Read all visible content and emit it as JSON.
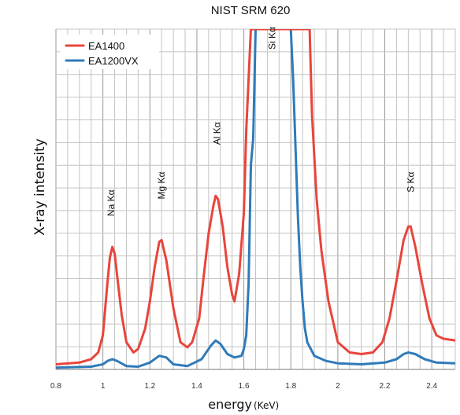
{
  "chart_data": {
    "type": "line",
    "title": "NIST SRM 620",
    "xlabel": "energy",
    "xunit": "(KeV)",
    "ylabel": "X-ray intensity",
    "xlim": [
      0.8,
      2.5
    ],
    "ylim": [
      0,
      100
    ],
    "x_ticks": [
      "0.8",
      "1",
      "1.2",
      "1.4",
      "1.6",
      "1.8",
      "2",
      "2.2",
      "2.4"
    ],
    "grid": true,
    "legend_position": "top-left",
    "series": [
      {
        "name": "EA1400",
        "color": "#e8453c",
        "points": [
          [
            0.8,
            1.5
          ],
          [
            0.9,
            2.0
          ],
          [
            0.95,
            3.0
          ],
          [
            0.98,
            5.0
          ],
          [
            1.0,
            10.0
          ],
          [
            1.01,
            18.0
          ],
          [
            1.02,
            26.0
          ],
          [
            1.03,
            33.0
          ],
          [
            1.04,
            36.0
          ],
          [
            1.05,
            34.0
          ],
          [
            1.06,
            28.0
          ],
          [
            1.08,
            16.0
          ],
          [
            1.1,
            8.0
          ],
          [
            1.13,
            5.0
          ],
          [
            1.15,
            6.0
          ],
          [
            1.18,
            12.0
          ],
          [
            1.2,
            20.0
          ],
          [
            1.22,
            30.0
          ],
          [
            1.24,
            37.5
          ],
          [
            1.25,
            38.0
          ],
          [
            1.27,
            32.0
          ],
          [
            1.3,
            18.0
          ],
          [
            1.33,
            8.0
          ],
          [
            1.36,
            6.5
          ],
          [
            1.38,
            8.0
          ],
          [
            1.41,
            15.0
          ],
          [
            1.43,
            28.0
          ],
          [
            1.45,
            40.0
          ],
          [
            1.47,
            48.0
          ],
          [
            1.48,
            51.0
          ],
          [
            1.49,
            50.0
          ],
          [
            1.51,
            42.0
          ],
          [
            1.53,
            30.0
          ],
          [
            1.55,
            22.0
          ],
          [
            1.56,
            20.0
          ],
          [
            1.58,
            28.0
          ],
          [
            1.6,
            46.0
          ],
          [
            1.61,
            70.0
          ],
          [
            1.63,
            100.0
          ],
          [
            1.88,
            100.0
          ],
          [
            1.89,
            75.0
          ],
          [
            1.91,
            50.0
          ],
          [
            1.93,
            35.0
          ],
          [
            1.96,
            20.0
          ],
          [
            2.0,
            8.0
          ],
          [
            2.05,
            5.0
          ],
          [
            2.1,
            4.5
          ],
          [
            2.15,
            5.0
          ],
          [
            2.19,
            8.0
          ],
          [
            2.22,
            15.0
          ],
          [
            2.25,
            26.0
          ],
          [
            2.28,
            38.0
          ],
          [
            2.3,
            42.0
          ],
          [
            2.31,
            42.0
          ],
          [
            2.33,
            36.0
          ],
          [
            2.36,
            25.0
          ],
          [
            2.39,
            15.0
          ],
          [
            2.42,
            10.0
          ],
          [
            2.45,
            9.0
          ],
          [
            2.5,
            8.5
          ]
        ]
      },
      {
        "name": "EA1200VX",
        "color": "#2f7ab9",
        "points": [
          [
            0.8,
            0.5
          ],
          [
            0.95,
            0.8
          ],
          [
            1.0,
            1.5
          ],
          [
            1.02,
            2.5
          ],
          [
            1.04,
            3.0
          ],
          [
            1.06,
            2.5
          ],
          [
            1.1,
            1.0
          ],
          [
            1.15,
            0.8
          ],
          [
            1.2,
            2.0
          ],
          [
            1.24,
            4.0
          ],
          [
            1.27,
            3.5
          ],
          [
            1.3,
            1.5
          ],
          [
            1.36,
            1.0
          ],
          [
            1.42,
            3.0
          ],
          [
            1.46,
            7.0
          ],
          [
            1.48,
            8.5
          ],
          [
            1.5,
            7.5
          ],
          [
            1.53,
            4.5
          ],
          [
            1.56,
            3.5
          ],
          [
            1.59,
            4.0
          ],
          [
            1.6,
            6.0
          ],
          [
            1.61,
            10.0
          ],
          [
            1.62,
            25.0
          ],
          [
            1.63,
            60.0
          ],
          [
            1.64,
            68.0
          ],
          [
            1.65,
            100.0
          ],
          [
            1.8,
            100.0
          ],
          [
            1.81,
            85.0
          ],
          [
            1.82,
            65.0
          ],
          [
            1.83,
            45.0
          ],
          [
            1.84,
            30.0
          ],
          [
            1.85,
            20.0
          ],
          [
            1.86,
            12.0
          ],
          [
            1.87,
            8.0
          ],
          [
            1.9,
            4.0
          ],
          [
            1.95,
            2.5
          ],
          [
            2.0,
            1.8
          ],
          [
            2.1,
            1.5
          ],
          [
            2.2,
            2.0
          ],
          [
            2.25,
            3.0
          ],
          [
            2.28,
            4.5
          ],
          [
            2.3,
            5.0
          ],
          [
            2.33,
            4.5
          ],
          [
            2.37,
            3.0
          ],
          [
            2.42,
            2.0
          ],
          [
            2.5,
            1.8
          ]
        ]
      }
    ],
    "annotations": [
      {
        "text": "Na Kα",
        "x": 1.035,
        "y": 45
      },
      {
        "text": "Mg Kα",
        "x": 1.25,
        "y": 50
      },
      {
        "text": "Al Kα",
        "x": 1.485,
        "y": 66
      },
      {
        "text": "Si Kα",
        "x": 1.72,
        "y": 94
      },
      {
        "text": "S Kα",
        "x": 2.31,
        "y": 52
      }
    ]
  }
}
